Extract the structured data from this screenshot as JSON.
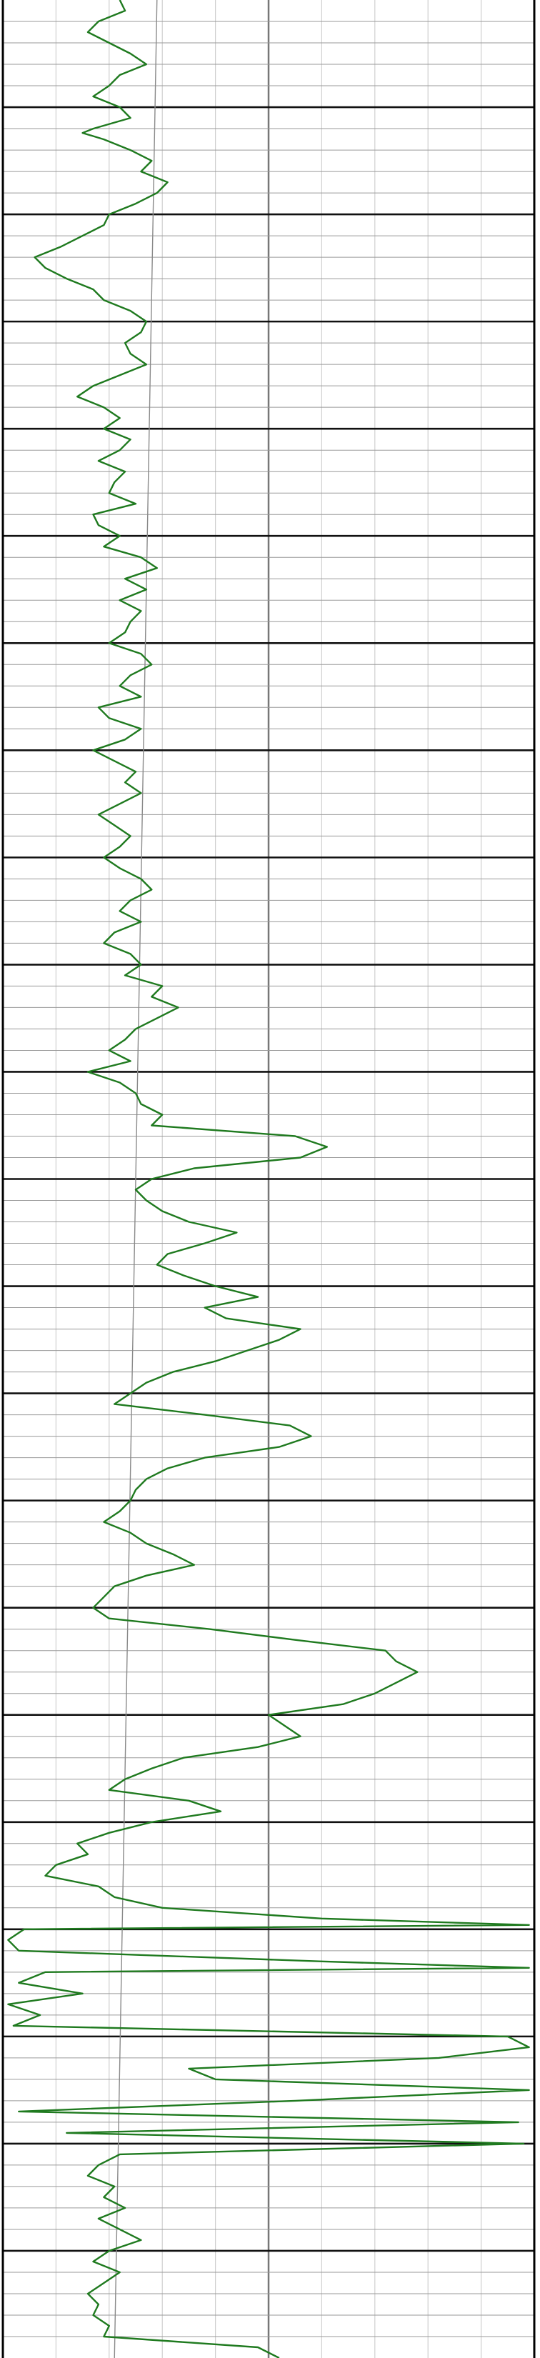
{
  "colors": {
    "background": "#ffffff",
    "curve": "#1f7a1f",
    "major_grid": "#111111",
    "minor_grid": "#9a9a9a",
    "vertical_grid": "#cfcfcf",
    "center_line": "#777777",
    "reference_line": "#8a8a8a"
  },
  "chart_data": {
    "type": "line",
    "title": "",
    "xlabel": "",
    "ylabel": "",
    "x_axis": {
      "range": [
        0,
        100
      ],
      "major_every": 50,
      "minor_every": 10
    },
    "depth_axis": {
      "range": [
        0,
        1100
      ],
      "inverted": true,
      "major_every": 50,
      "minor_every": 10
    },
    "grid": true,
    "reference_line": {
      "x_top": 29,
      "x_bottom": 21
    },
    "series": [
      {
        "values": [
          [
            0,
            22
          ],
          [
            5,
            23
          ],
          [
            10,
            18
          ],
          [
            15,
            16
          ],
          [
            20,
            20
          ],
          [
            25,
            24
          ],
          [
            30,
            27
          ],
          [
            35,
            22
          ],
          [
            40,
            20
          ],
          [
            45,
            17
          ],
          [
            50,
            22
          ],
          [
            55,
            24
          ],
          [
            60,
            17
          ],
          [
            62,
            15
          ],
          [
            65,
            19
          ],
          [
            70,
            24
          ],
          [
            75,
            28
          ],
          [
            80,
            26
          ],
          [
            85,
            31
          ],
          [
            90,
            29
          ],
          [
            95,
            25
          ],
          [
            100,
            20
          ],
          [
            105,
            19
          ],
          [
            110,
            15
          ],
          [
            115,
            11
          ],
          [
            120,
            6
          ],
          [
            125,
            8
          ],
          [
            130,
            12
          ],
          [
            135,
            17
          ],
          [
            140,
            19
          ],
          [
            145,
            24
          ],
          [
            150,
            27
          ],
          [
            155,
            26
          ],
          [
            160,
            23
          ],
          [
            165,
            24
          ],
          [
            170,
            27
          ],
          [
            175,
            22
          ],
          [
            180,
            17
          ],
          [
            185,
            14
          ],
          [
            190,
            19
          ],
          [
            195,
            22
          ],
          [
            200,
            19
          ],
          [
            205,
            24
          ],
          [
            210,
            22
          ],
          [
            215,
            18
          ],
          [
            220,
            23
          ],
          [
            225,
            21
          ],
          [
            230,
            20
          ],
          [
            235,
            25
          ],
          [
            240,
            17
          ],
          [
            245,
            18
          ],
          [
            250,
            22
          ],
          [
            255,
            19
          ],
          [
            260,
            26
          ],
          [
            265,
            29
          ],
          [
            270,
            23
          ],
          [
            275,
            27
          ],
          [
            280,
            22
          ],
          [
            285,
            26
          ],
          [
            290,
            24
          ],
          [
            295,
            23
          ],
          [
            300,
            20
          ],
          [
            305,
            26
          ],
          [
            310,
            28
          ],
          [
            315,
            24
          ],
          [
            320,
            22
          ],
          [
            325,
            26
          ],
          [
            330,
            18
          ],
          [
            335,
            20
          ],
          [
            340,
            26
          ],
          [
            345,
            23
          ],
          [
            350,
            17
          ],
          [
            355,
            21
          ],
          [
            360,
            25
          ],
          [
            365,
            23
          ],
          [
            370,
            26
          ],
          [
            375,
            22
          ],
          [
            380,
            18
          ],
          [
            385,
            21
          ],
          [
            390,
            24
          ],
          [
            395,
            22
          ],
          [
            400,
            19
          ],
          [
            405,
            22
          ],
          [
            410,
            26
          ],
          [
            415,
            28
          ],
          [
            420,
            24
          ],
          [
            425,
            22
          ],
          [
            430,
            26
          ],
          [
            435,
            21
          ],
          [
            440,
            19
          ],
          [
            445,
            24
          ],
          [
            450,
            26
          ],
          [
            455,
            23
          ],
          [
            460,
            30
          ],
          [
            465,
            28
          ],
          [
            470,
            33
          ],
          [
            475,
            29
          ],
          [
            480,
            25
          ],
          [
            485,
            23
          ],
          [
            490,
            20
          ],
          [
            495,
            24
          ],
          [
            500,
            16
          ],
          [
            505,
            22
          ],
          [
            510,
            25
          ],
          [
            515,
            26
          ],
          [
            520,
            30
          ],
          [
            525,
            28
          ],
          [
            530,
            55
          ],
          [
            535,
            61
          ],
          [
            540,
            56
          ],
          [
            545,
            36
          ],
          [
            550,
            28
          ],
          [
            555,
            25
          ],
          [
            560,
            27
          ],
          [
            565,
            30
          ],
          [
            570,
            35
          ],
          [
            575,
            44
          ],
          [
            580,
            38
          ],
          [
            585,
            31
          ],
          [
            590,
            29
          ],
          [
            595,
            34
          ],
          [
            600,
            40
          ],
          [
            605,
            48
          ],
          [
            610,
            38
          ],
          [
            615,
            42
          ],
          [
            620,
            56
          ],
          [
            625,
            52
          ],
          [
            630,
            46
          ],
          [
            635,
            40
          ],
          [
            640,
            32
          ],
          [
            645,
            27
          ],
          [
            650,
            24
          ],
          [
            655,
            21
          ],
          [
            660,
            38
          ],
          [
            665,
            54
          ],
          [
            670,
            58
          ],
          [
            675,
            52
          ],
          [
            680,
            38
          ],
          [
            685,
            31
          ],
          [
            690,
            27
          ],
          [
            695,
            25
          ],
          [
            700,
            24
          ],
          [
            705,
            22
          ],
          [
            710,
            19
          ],
          [
            715,
            24
          ],
          [
            720,
            27
          ],
          [
            725,
            32
          ],
          [
            730,
            36
          ],
          [
            735,
            27
          ],
          [
            740,
            21
          ],
          [
            745,
            19
          ],
          [
            750,
            17
          ],
          [
            755,
            20
          ],
          [
            760,
            39
          ],
          [
            765,
            55
          ],
          [
            770,
            72
          ],
          [
            775,
            74
          ],
          [
            780,
            78
          ],
          [
            785,
            74
          ],
          [
            790,
            70
          ],
          [
            795,
            64
          ],
          [
            800,
            50
          ],
          [
            805,
            53
          ],
          [
            810,
            56
          ],
          [
            815,
            48
          ],
          [
            820,
            34
          ],
          [
            825,
            28
          ],
          [
            830,
            23
          ],
          [
            835,
            20
          ],
          [
            840,
            35
          ],
          [
            845,
            41
          ],
          [
            850,
            28
          ],
          [
            855,
            20
          ],
          [
            860,
            14
          ],
          [
            865,
            16
          ],
          [
            870,
            10
          ],
          [
            875,
            8
          ],
          [
            880,
            18
          ],
          [
            885,
            21
          ],
          [
            890,
            30
          ],
          [
            895,
            60
          ],
          [
            898,
            99
          ],
          [
            900,
            4
          ],
          [
            905,
            1
          ],
          [
            910,
            3
          ],
          [
            915,
            60
          ],
          [
            918,
            99
          ],
          [
            920,
            8
          ],
          [
            925,
            3
          ],
          [
            930,
            15
          ],
          [
            935,
            1
          ],
          [
            940,
            7
          ],
          [
            945,
            2
          ],
          [
            950,
            95
          ],
          [
            955,
            99
          ],
          [
            960,
            82
          ],
          [
            965,
            35
          ],
          [
            970,
            40
          ],
          [
            975,
            99
          ],
          [
            980,
            55
          ],
          [
            985,
            3
          ],
          [
            990,
            97
          ],
          [
            995,
            12
          ],
          [
            1000,
            98
          ],
          [
            1005,
            22
          ],
          [
            1010,
            18
          ],
          [
            1015,
            16
          ],
          [
            1020,
            21
          ],
          [
            1025,
            19
          ],
          [
            1030,
            23
          ],
          [
            1035,
            18
          ],
          [
            1040,
            22
          ],
          [
            1045,
            26
          ],
          [
            1050,
            20
          ],
          [
            1055,
            17
          ],
          [
            1060,
            22
          ],
          [
            1065,
            19
          ],
          [
            1070,
            16
          ],
          [
            1075,
            18
          ],
          [
            1080,
            17
          ],
          [
            1085,
            20
          ],
          [
            1090,
            19
          ],
          [
            1095,
            48
          ],
          [
            1100,
            52
          ]
        ]
      }
    ]
  }
}
